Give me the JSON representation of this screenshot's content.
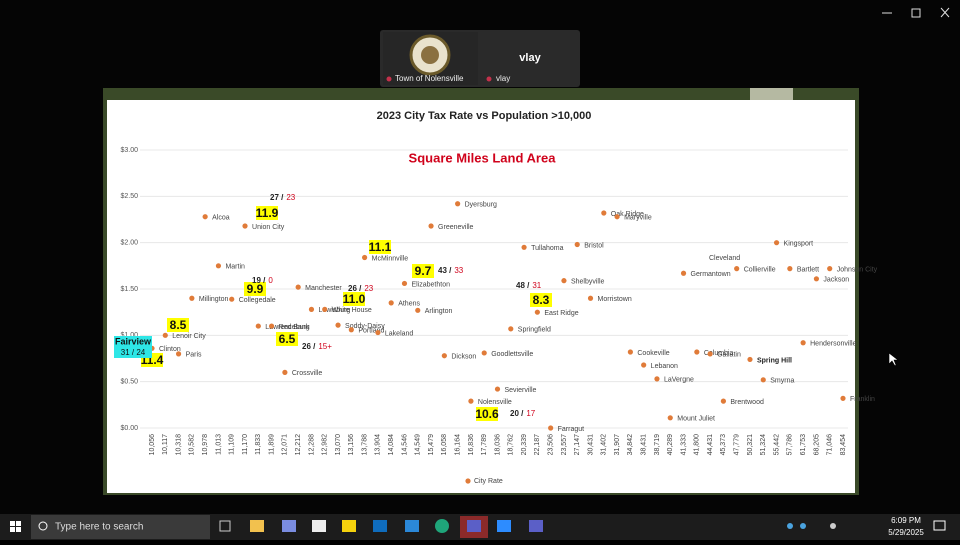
{
  "meeting": {
    "participants": [
      "Town of Nolensville",
      "vlay"
    ],
    "active_speaker": "vlay"
  },
  "chart_data": {
    "type": "scatter",
    "title": "2023 City Tax Rate vs Population >10,000",
    "subtitle": "Square Miles Land Area",
    "categories": [
      "10,056",
      "10,117",
      "10,318",
      "10,582",
      "10,978",
      "11,013",
      "11,109",
      "11,170",
      "11,833",
      "11,899",
      "12,071",
      "12,212",
      "12,288",
      "12,982",
      "13,070",
      "13,156",
      "13,788",
      "13,904",
      "14,084",
      "14,546",
      "14,549",
      "15,479",
      "16,058",
      "16,164",
      "16,836",
      "17,789",
      "18,036",
      "18,762",
      "20,339",
      "22,187",
      "23,506",
      "23,557",
      "27,147",
      "30,431",
      "31,402",
      "31,907",
      "34,842",
      "38,431",
      "38,719",
      "40,289",
      "41,333",
      "41,800",
      "44,431",
      "45,373",
      "47,779",
      "50,321",
      "51,324",
      "55,442",
      "57,786",
      "61,753",
      "68,205",
      "71,046",
      "83,454"
    ],
    "series": [
      {
        "name": "City Rate",
        "color": "#e07b39",
        "values": [
          0.86,
          1.0,
          0.8,
          1.4,
          2.28,
          1.75,
          1.39,
          2.18,
          1.1,
          1.1,
          0.6,
          1.52,
          1.28,
          1.28,
          1.11,
          1.06,
          1.84,
          1.03,
          1.35,
          1.56,
          1.27,
          2.18,
          0.78,
          2.42,
          0.29,
          0.81,
          0.42,
          1.07,
          1.95,
          1.25,
          0.0,
          1.59,
          1.98,
          1.4,
          2.32,
          2.28,
          0.82,
          0.68,
          0.53,
          0.11,
          1.67,
          0.82,
          0.8,
          0.29,
          1.72,
          0.74,
          0.52,
          2.0,
          1.72,
          0.92,
          1.61,
          1.72,
          0.32
        ]
      }
    ],
    "point_labels": [
      "Clinton",
      "Lenoir City",
      "Paris",
      "Millington",
      "Alcoa",
      "Martin",
      "Collegedale",
      "Union City",
      "Lawrenceburg",
      "Red Bank",
      "Crossville",
      "Manchester",
      "Lewisburg",
      "White House",
      "Soddy-Daisy",
      "Portland",
      "McMinnville",
      "Lakeland",
      "Athens",
      "Elizabethton",
      "Arlington",
      "Greeneville",
      "Dickson",
      "Dyersburg",
      "Nolensville",
      "Goodlettsville",
      "Sevierville",
      "Springfield",
      "Tullahoma",
      "East Ridge",
      "Farragut",
      "Shelbyville",
      "Bristol",
      "Morristown",
      "Oak Ridge",
      "Maryville",
      "Cookeville",
      "Lebanon",
      "LaVergne",
      "Mount Juliet",
      "Germantown",
      "Columbia",
      "Gallatin",
      "Brentwood",
      "Collierville",
      "Spring Hill",
      "Smyrna",
      "Kingsport",
      "Bartlett",
      "Hendersonville",
      "Jackson",
      "Johnson City",
      "Franklin"
    ],
    "ylim": [
      0,
      3
    ],
    "yticks": [
      {
        "value": 0,
        "label": "$0.00"
      },
      {
        "value": 0.5,
        "label": "$0.50"
      },
      {
        "value": 1,
        "label": "$1.00"
      },
      {
        "value": 1.5,
        "label": "$1.50"
      },
      {
        "value": 2,
        "label": "$2.00"
      },
      {
        "value": 2.5,
        "label": "$2.50"
      },
      {
        "value": 3,
        "label": "$3.00"
      }
    ],
    "grid": true,
    "area_labels": [
      "8.5",
      "11.4",
      "9.9",
      "11.9",
      "6.5",
      "11.0",
      "11.1",
      "9.7",
      "10.6",
      "8.3"
    ],
    "rank_labels": [
      {
        "left": "27 /",
        "right": "23"
      },
      {
        "left": "19 /",
        "right": "0"
      },
      {
        "left": "26 /",
        "right": "15+"
      },
      {
        "left": "26 /",
        "right": "23"
      },
      {
        "left": "43 /",
        "right": "33"
      },
      {
        "left": "48 /",
        "right": "31"
      },
      {
        "left": "20 /",
        "right": "17"
      }
    ],
    "extra_labels": [
      "Cleveland"
    ],
    "highlight": {
      "name": "Fairview",
      "rank": "31 / 24"
    }
  },
  "taskbar": {
    "search": "Type here to search",
    "time": "6:09 PM",
    "date": "5/29/2025"
  }
}
